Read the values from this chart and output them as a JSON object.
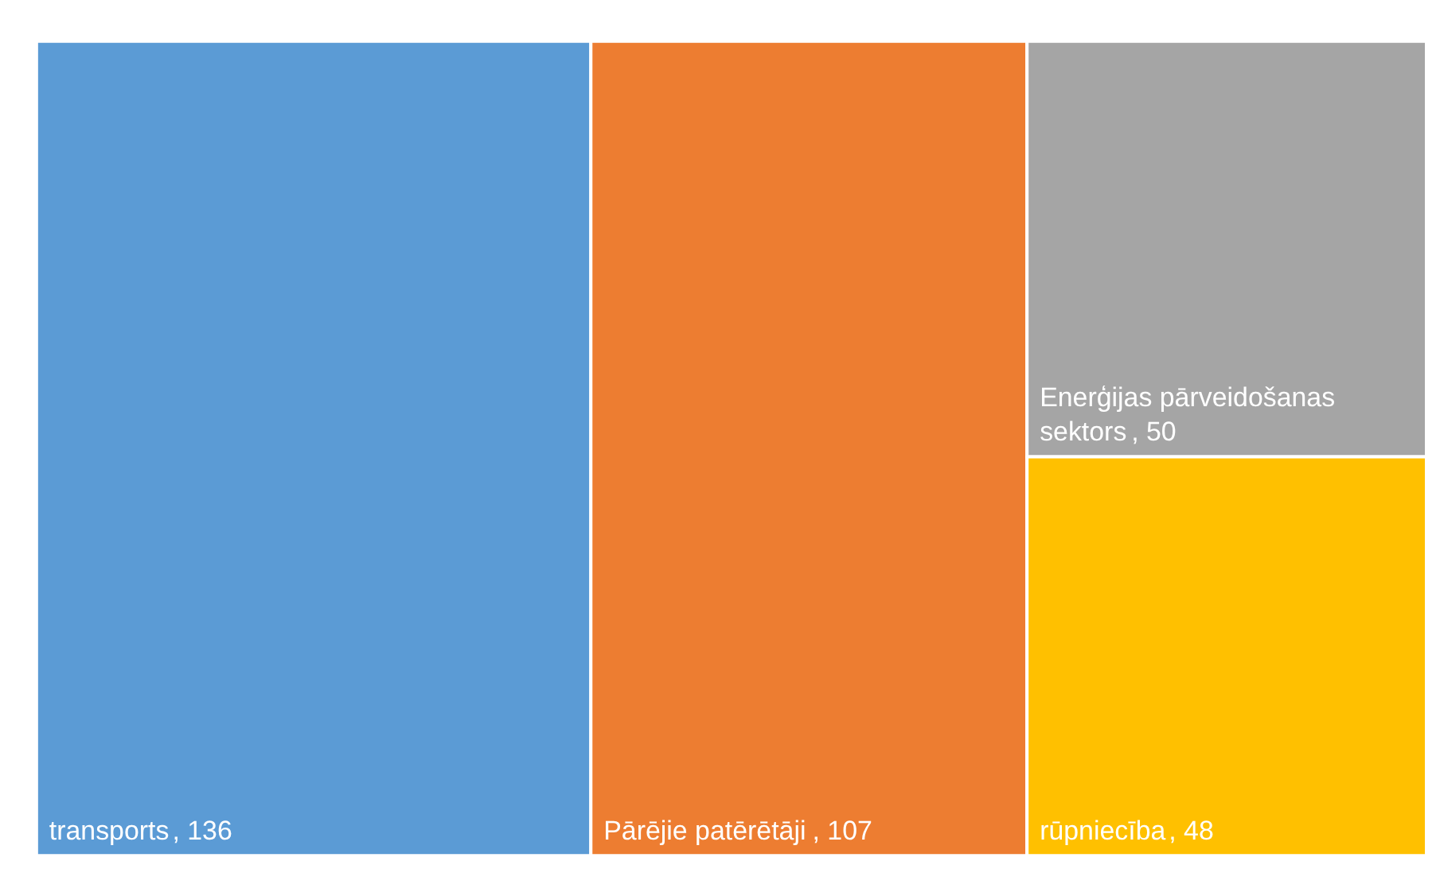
{
  "chart_data": {
    "type": "other",
    "categories": [
      "transports",
      "Pārējie patērētāji",
      "Enerģijas pārveidošanas sektors",
      "rūpniecība"
    ],
    "values": [
      136,
      107,
      50,
      48
    ],
    "colors": [
      "#5b9bd5",
      "#ed7d31",
      "#a5a5a5",
      "#ffc000"
    ],
    "value_labels": [
      ", 136",
      ", 107",
      ", 50",
      ", 48"
    ]
  }
}
